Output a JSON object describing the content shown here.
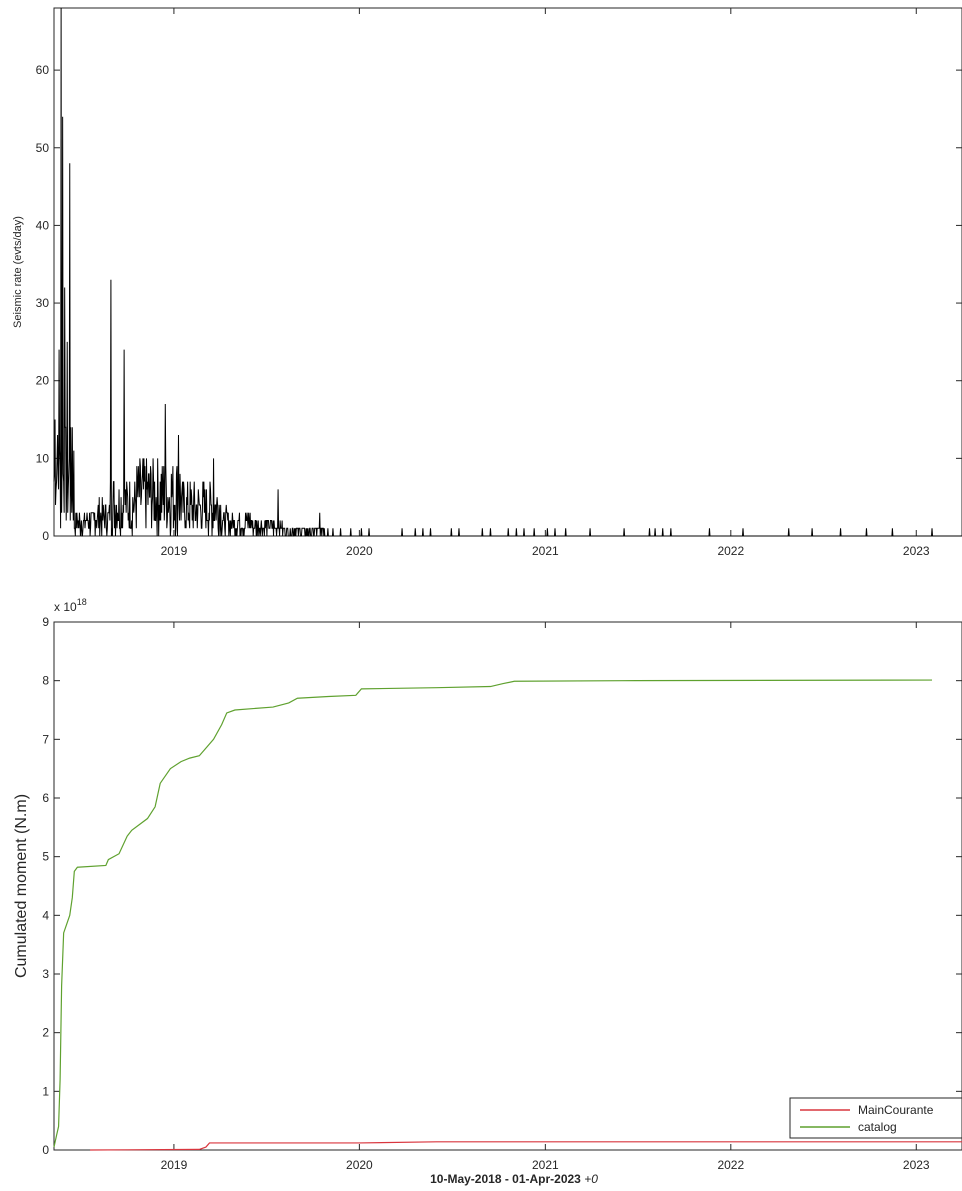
{
  "chart_data": [
    {
      "type": "line",
      "ylabel": "Seismic rate (evts/day)",
      "xlabel": "",
      "ylim": [
        0,
        68
      ],
      "xlim": [
        "2018-05-10",
        "2023-04-01"
      ],
      "yticks": [
        "0",
        "10",
        "20",
        "30",
        "40",
        "50",
        "60"
      ],
      "xticks": [
        "2019",
        "2020",
        "2021",
        "2022",
        "2023"
      ],
      "grid": false,
      "series": [
        {
          "color": "#000000",
          "peaks": [
            {
              "date": "2018-05-12",
              "value": 15
            },
            {
              "date": "2018-05-16",
              "value": 10
            },
            {
              "date": "2018-05-20",
              "value": 24
            },
            {
              "date": "2018-05-24",
              "value": 68
            },
            {
              "date": "2018-05-27",
              "value": 54
            },
            {
              "date": "2018-05-31",
              "value": 32
            },
            {
              "date": "2018-06-05",
              "value": 25
            },
            {
              "date": "2018-06-10",
              "value": 48
            },
            {
              "date": "2018-06-15",
              "value": 14
            },
            {
              "date": "2018-08-30",
              "value": 33
            },
            {
              "date": "2018-09-25",
              "value": 24
            },
            {
              "date": "2018-12-15",
              "value": 17
            },
            {
              "date": "2019-01-10",
              "value": 13
            },
            {
              "date": "2019-03-20",
              "value": 10
            },
            {
              "date": "2019-07-25",
              "value": 6
            },
            {
              "date": "2019-10-15",
              "value": 3
            }
          ],
          "sparse_events_1_per_day": [
            "2019-11-10",
            "2019-11-25",
            "2019-12-15",
            "2020-01-05",
            "2020-01-20",
            "2020-03-25",
            "2020-04-20",
            "2020-05-05",
            "2020-05-20",
            "2020-06-30",
            "2020-07-15",
            "2020-08-30",
            "2020-09-15",
            "2020-10-20",
            "2020-11-05",
            "2020-11-20",
            "2020-12-10",
            "2021-01-05",
            "2021-01-20",
            "2021-02-10",
            "2021-03-30",
            "2021-06-05",
            "2021-07-25",
            "2021-08-05",
            "2021-08-20",
            "2021-09-05",
            "2021-11-20",
            "2022-01-25",
            "2022-04-25",
            "2022-06-10",
            "2022-08-05",
            "2022-09-25",
            "2022-11-15",
            "2023-02-01"
          ]
        }
      ]
    },
    {
      "type": "line",
      "ylabel": "Cumulated moment (N.m)",
      "xlabel": "10-May-2018 - 01-Apr-2023",
      "xlabel_suffix": "+0",
      "y_exponent_label": "x 10",
      "y_exponent_power": "18",
      "ylim": [
        0,
        9
      ],
      "xlim": [
        "2018-05-10",
        "2023-04-01"
      ],
      "yticks": [
        "0",
        "1",
        "2",
        "3",
        "4",
        "5",
        "6",
        "7",
        "8",
        "9"
      ],
      "xticks": [
        "2019",
        "2020",
        "2021",
        "2022",
        "2023"
      ],
      "grid": false,
      "legend_position": "bottom-right",
      "series": [
        {
          "name": "MainCourante",
          "color": "#d9363e",
          "points": [
            [
              "2018-07-20",
              0
            ],
            [
              "2019-02-20",
              0.01
            ],
            [
              "2019-03-05",
              0.05
            ],
            [
              "2019-03-12",
              0.12
            ],
            [
              "2020-01-01",
              0.12
            ],
            [
              "2020-06-01",
              0.14
            ],
            [
              "2021-01-01",
              0.14
            ],
            [
              "2022-01-01",
              0.14
            ],
            [
              "2023-04-01",
              0.14
            ]
          ]
        },
        {
          "name": "catalog",
          "color": "#5fa12f",
          "points": [
            [
              "2018-05-10",
              0.05
            ],
            [
              "2018-05-15",
              0.25
            ],
            [
              "2018-05-19",
              0.4
            ],
            [
              "2018-05-22",
              1.2
            ],
            [
              "2018-05-25",
              2.8
            ],
            [
              "2018-05-29",
              3.7
            ],
            [
              "2018-06-02",
              3.8
            ],
            [
              "2018-06-06",
              3.9
            ],
            [
              "2018-06-10",
              4.0
            ],
            [
              "2018-06-15",
              4.3
            ],
            [
              "2018-06-19",
              4.75
            ],
            [
              "2018-06-25",
              4.82
            ],
            [
              "2018-08-20",
              4.85
            ],
            [
              "2018-08-25",
              4.95
            ],
            [
              "2018-09-15",
              5.05
            ],
            [
              "2018-10-01",
              5.35
            ],
            [
              "2018-10-10",
              5.45
            ],
            [
              "2018-11-10",
              5.65
            ],
            [
              "2018-11-25",
              5.85
            ],
            [
              "2018-12-05",
              6.25
            ],
            [
              "2018-12-25",
              6.5
            ],
            [
              "2019-01-15",
              6.62
            ],
            [
              "2019-02-01",
              6.68
            ],
            [
              "2019-02-20",
              6.72
            ],
            [
              "2019-03-05",
              6.85
            ],
            [
              "2019-03-20",
              7.0
            ],
            [
              "2019-04-05",
              7.25
            ],
            [
              "2019-04-15",
              7.45
            ],
            [
              "2019-05-01",
              7.5
            ],
            [
              "2019-07-15",
              7.55
            ],
            [
              "2019-08-15",
              7.62
            ],
            [
              "2019-09-01",
              7.7
            ],
            [
              "2019-11-01",
              7.73
            ],
            [
              "2019-12-25",
              7.75
            ],
            [
              "2020-01-05",
              7.86
            ],
            [
              "2020-06-01",
              7.88
            ],
            [
              "2020-09-15",
              7.9
            ],
            [
              "2020-10-10",
              7.95
            ],
            [
              "2020-11-01",
              7.99
            ],
            [
              "2021-06-01",
              8.0
            ],
            [
              "2023-02-01",
              8.01
            ]
          ]
        }
      ]
    }
  ]
}
